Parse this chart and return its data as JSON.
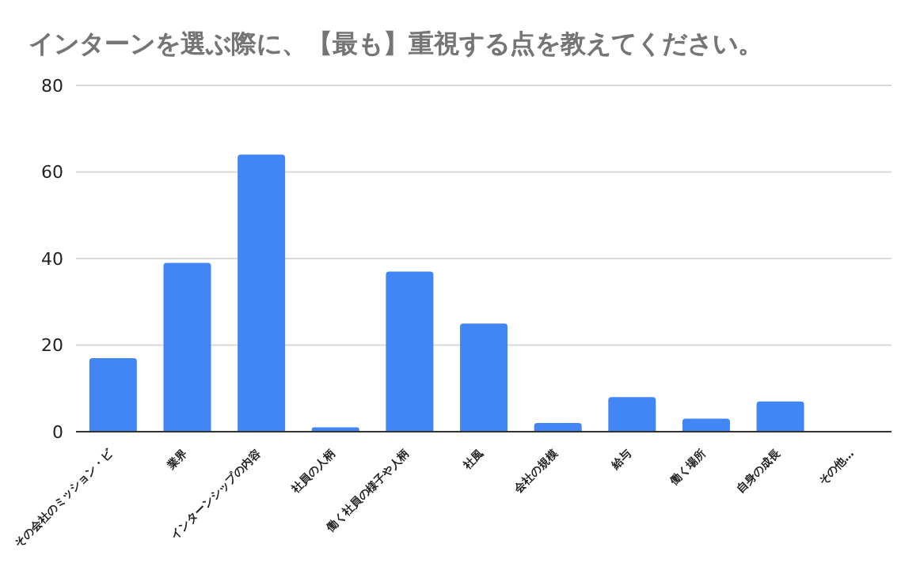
{
  "chart_data": {
    "type": "bar",
    "title": "インターンを選ぶ際に、【最も】重視する点を教えてください。",
    "categories": [
      "その会社のミッション・ビ",
      "業界",
      "インターンシップの内容",
      "社員の人柄",
      "働く社員の様子や人柄",
      "社風",
      "会社の規模",
      "給与",
      "働く場所",
      "自身の成長",
      "その他…"
    ],
    "values": [
      17,
      39,
      64,
      1,
      37,
      25,
      2,
      8,
      3,
      7,
      0
    ],
    "color": "#4285f4",
    "ylim": [
      0,
      80
    ],
    "yticks": [
      0,
      20,
      40,
      60,
      80
    ],
    "grid": "y"
  }
}
